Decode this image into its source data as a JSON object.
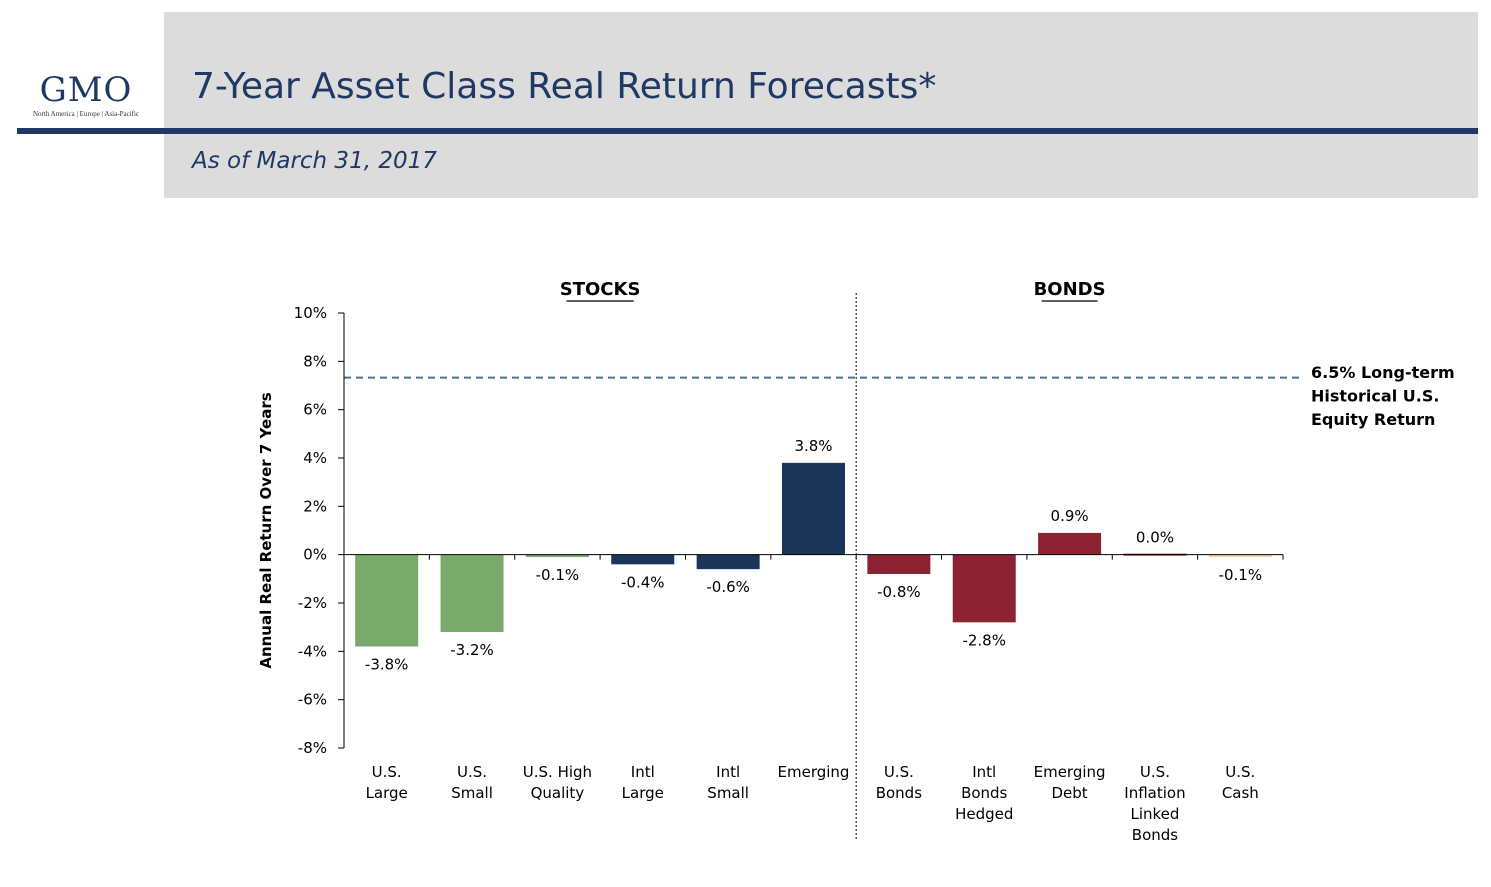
{
  "header": {
    "logo_text": "GMO",
    "logo_subtext": "North America | Europe | Asia-Pacific",
    "title": "7-Year Asset Class Real Return Forecasts*",
    "subtitle": "As of March 31, 2017"
  },
  "colors": {
    "brand_navy": "#1f3864",
    "header_gray": "#dcdcdc",
    "stocks_us": "#7aa96c",
    "stocks_navy": "#1c3659",
    "bonds_red": "#8c2332",
    "cash_tan": "#e9d9a6",
    "reference_line": "#4a6f97"
  },
  "chart_data": {
    "type": "bar",
    "ylabel": "Annual Real Return Over 7 Years",
    "ylim": [
      -8,
      10
    ],
    "yticks": [
      10,
      8,
      6,
      4,
      2,
      0,
      -2,
      -4,
      -6,
      -8
    ],
    "ytick_labels": [
      "10%",
      "8%",
      "6%",
      "4%",
      "2%",
      "0%",
      "-2%",
      "-4%",
      "-6%",
      "-8%"
    ],
    "groups": [
      {
        "name": "STOCKS",
        "start": 0,
        "end": 5
      },
      {
        "name": "BONDS",
        "start": 6,
        "end": 10
      }
    ],
    "categories": [
      [
        "U.S.",
        "Large"
      ],
      [
        "U.S.",
        "Small"
      ],
      [
        "U.S. High",
        "Quality"
      ],
      [
        "Intl",
        "Large"
      ],
      [
        "Intl",
        "Small"
      ],
      [
        "Emerging"
      ],
      [
        "U.S.",
        "Bonds"
      ],
      [
        "Intl",
        "Bonds",
        "Hedged"
      ],
      [
        "Emerging",
        "Debt"
      ],
      [
        "U.S.",
        "Inflation",
        "Linked",
        "Bonds"
      ],
      [
        "U.S.",
        "Cash"
      ]
    ],
    "values": [
      -3.8,
      -3.2,
      -0.1,
      -0.4,
      -0.6,
      3.8,
      -0.8,
      -2.8,
      0.9,
      0.0,
      -0.1
    ],
    "value_labels": [
      "-3.8%",
      "-3.2%",
      "-0.1%",
      "-0.4%",
      "-0.6%",
      "3.8%",
      "-0.8%",
      "-2.8%",
      "0.9%",
      "0.0%",
      "-0.1%"
    ],
    "bar_colors": [
      "#7aa96c",
      "#7aa96c",
      "#7aa96c",
      "#1c3659",
      "#1c3659",
      "#1c3659",
      "#8c2332",
      "#8c2332",
      "#8c2332",
      "#8c2332",
      "#e9d9a6"
    ],
    "reference_line": {
      "value": 6.5,
      "label": [
        "6.5% Long-term",
        "Historical U.S.",
        "Equity Return"
      ]
    }
  }
}
